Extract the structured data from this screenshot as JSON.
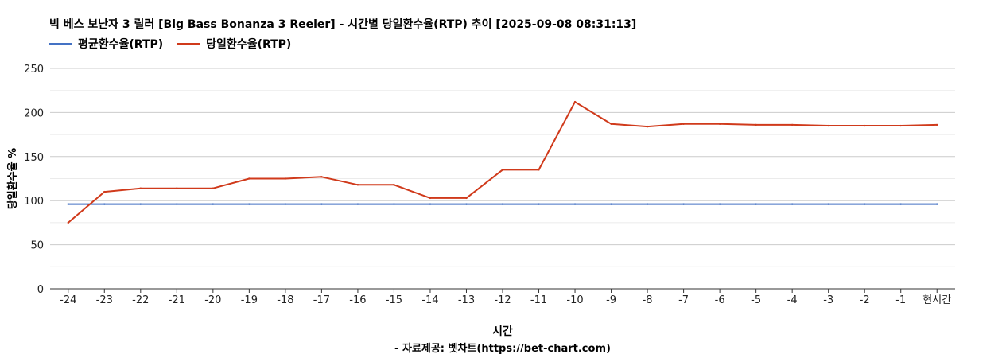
{
  "colors": {
    "average": "#4472c4",
    "daily": "#d03a1b",
    "grid": "#dddddd",
    "axis": "#333333"
  },
  "chart_data": {
    "type": "line",
    "title": "빅 베스 보난자 3 릴러 [Big Bass Bonanza 3 Reeler] - 시간별 당일환수율(RTP) 추이 [2025-09-08 08:31:13]",
    "xlabel": "시간",
    "ylabel": "당일환수율 %",
    "source": "- 자료제공: 벳차트(https://bet-chart.com)",
    "categories": [
      "-24",
      "-23",
      "-22",
      "-21",
      "-20",
      "-19",
      "-18",
      "-17",
      "-16",
      "-15",
      "-14",
      "-13",
      "-12",
      "-11",
      "-10",
      "-9",
      "-8",
      "-7",
      "-6",
      "-5",
      "-4",
      "-3",
      "-2",
      "-1",
      "현시간"
    ],
    "ylim": [
      0,
      250
    ],
    "yticks": [
      0,
      50,
      100,
      150,
      200,
      250
    ],
    "grid": true,
    "legend_position": "top-left",
    "series": [
      {
        "name": "평균환수율(RTP)",
        "color_key": "average",
        "values": [
          96,
          96,
          96,
          96,
          96,
          96,
          96,
          96,
          96,
          96,
          96,
          96,
          96,
          96,
          96,
          96,
          96,
          96,
          96,
          96,
          96,
          96,
          96,
          96,
          96
        ]
      },
      {
        "name": "당일환수율(RTP)",
        "color_key": "daily",
        "values": [
          75,
          110,
          114,
          114,
          114,
          125,
          125,
          127,
          118,
          118,
          103,
          103,
          135,
          135,
          212,
          187,
          184,
          187,
          187,
          186,
          186,
          185,
          185,
          185,
          186
        ]
      }
    ]
  }
}
